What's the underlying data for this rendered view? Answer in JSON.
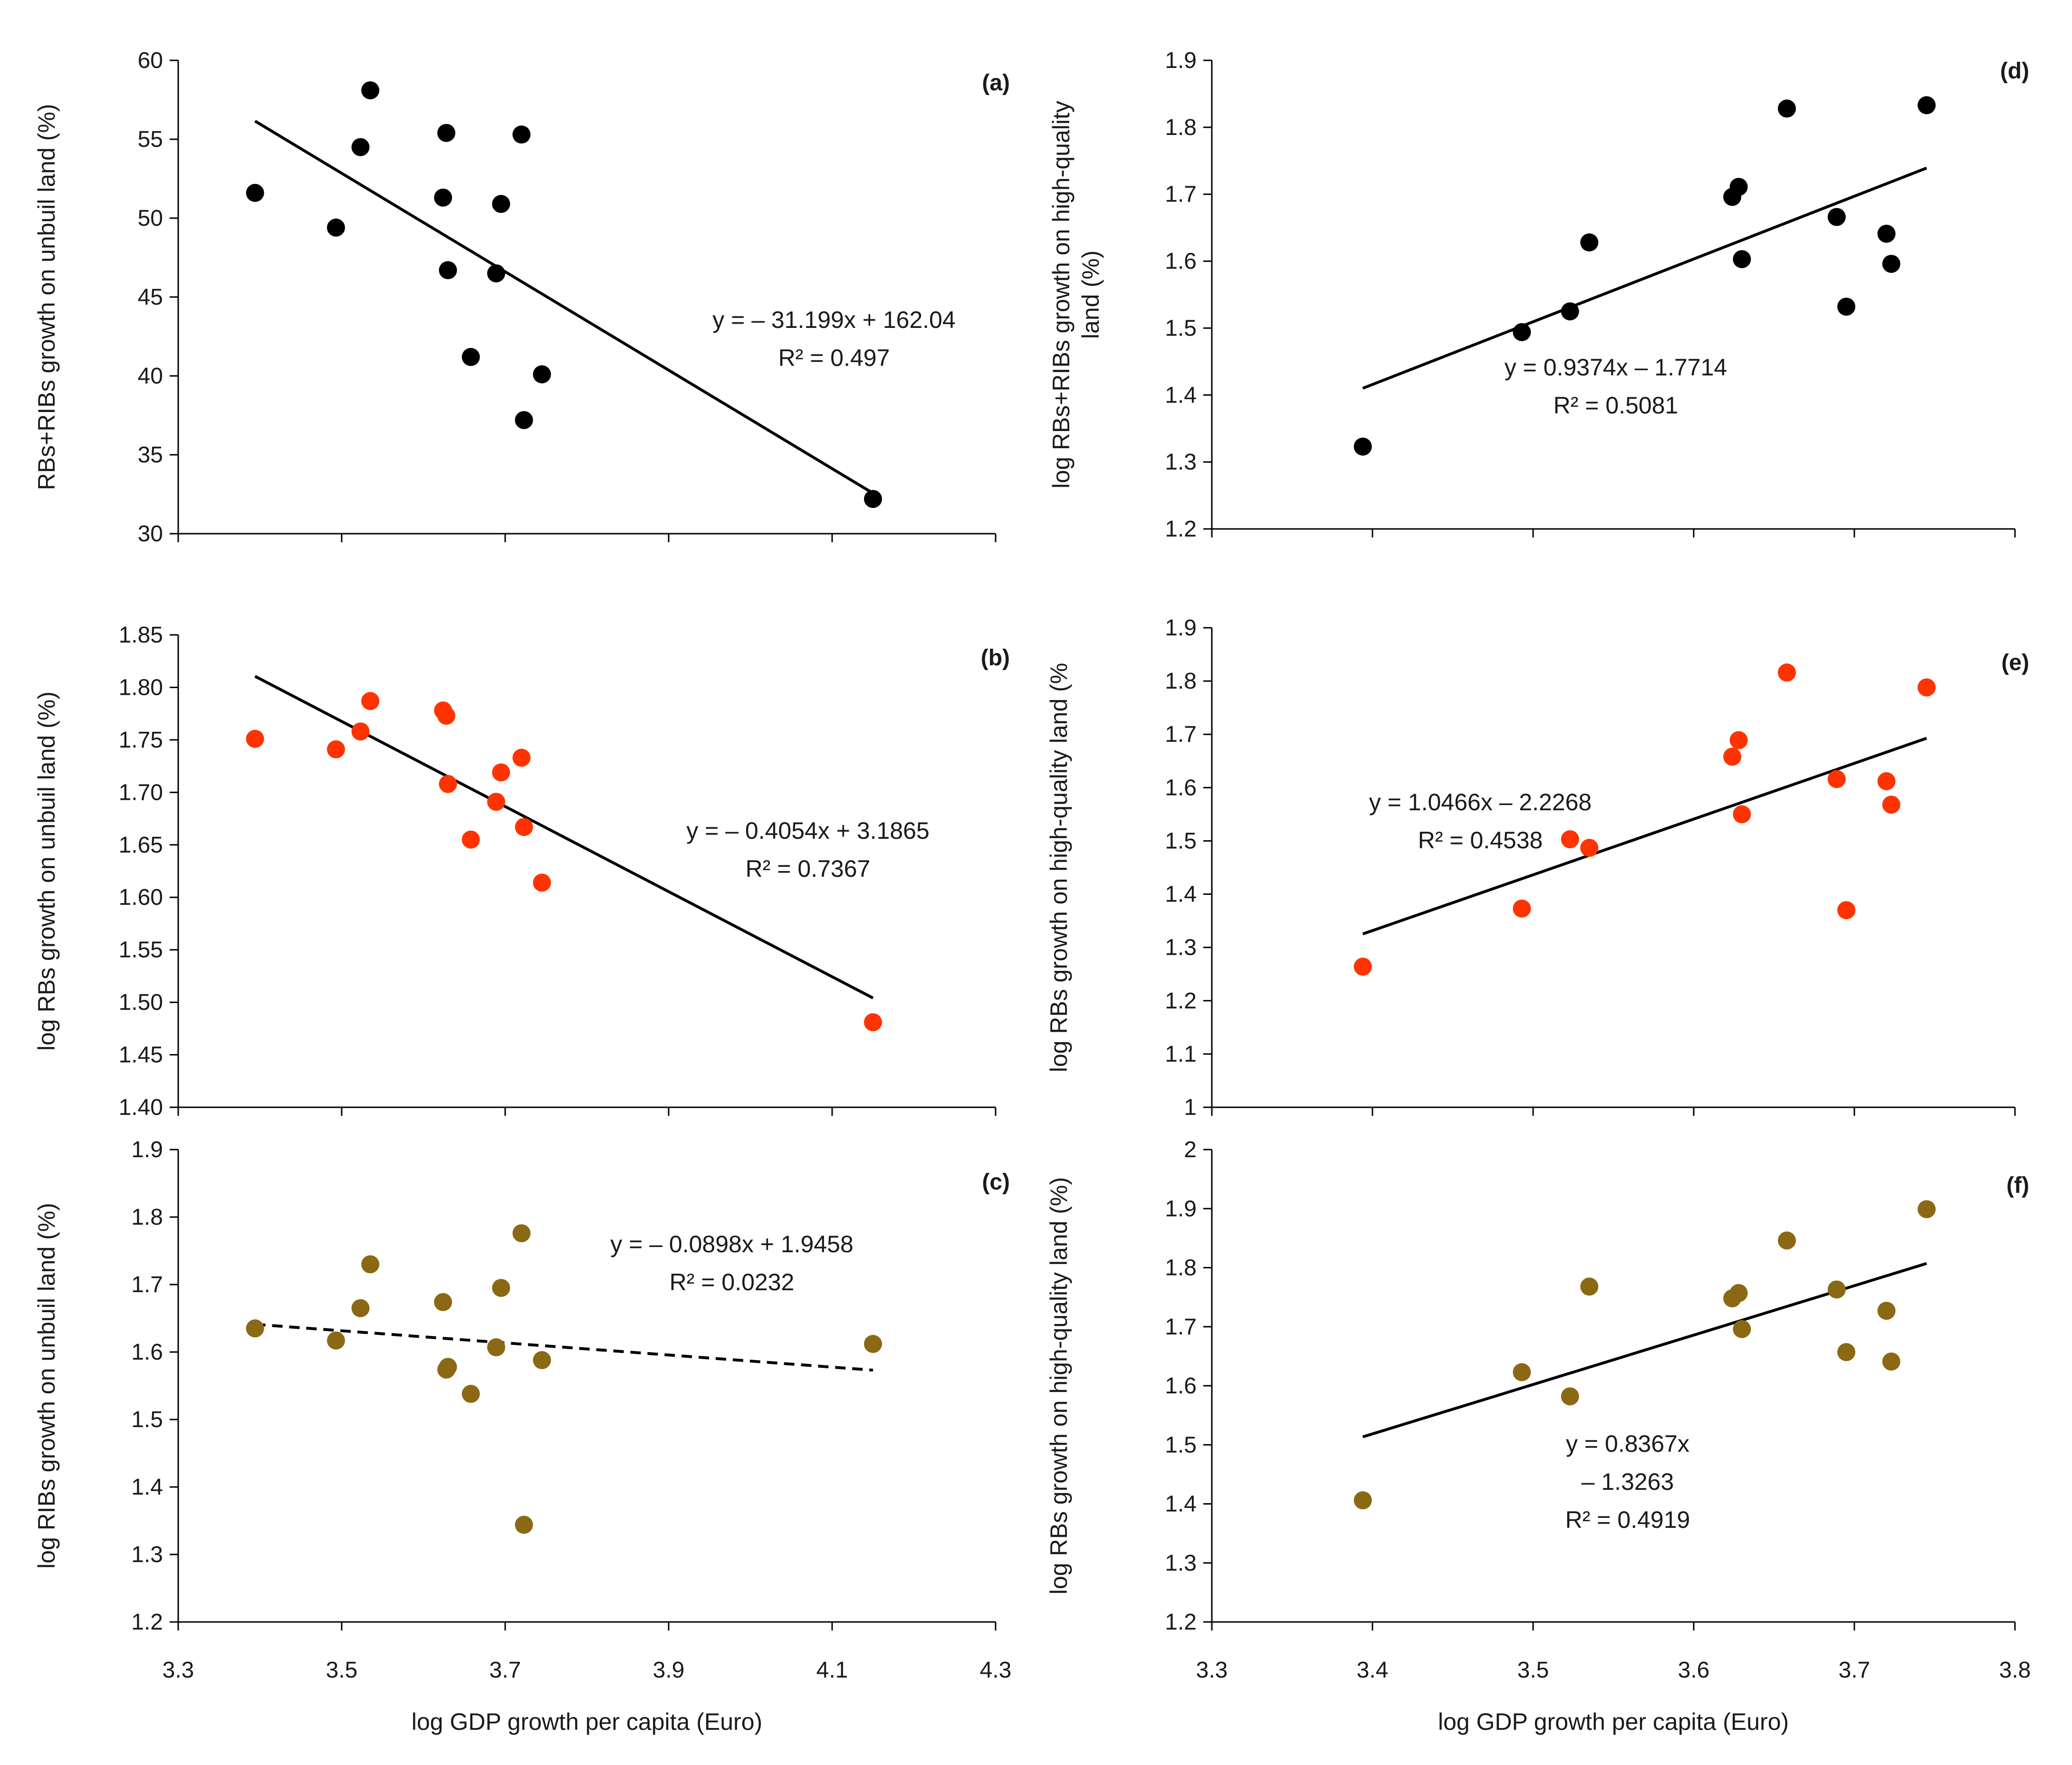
{
  "chart_data": [
    {
      "id": "a",
      "type": "scatter",
      "panel_label": "(a)",
      "ylabel": "RBs+RIBs  growth on unbuil land (%)",
      "xlabel": "",
      "xlim": [
        3.3,
        4.3
      ],
      "ylim": [
        30,
        60
      ],
      "xticks": [
        3.3,
        3.5,
        3.7,
        3.9,
        4.1,
        4.3
      ],
      "yticks": [
        30,
        35,
        40,
        45,
        50,
        55,
        60
      ],
      "show_x_tick_labels": false,
      "point_color": "#000000",
      "x": [
        3.394,
        3.493,
        3.523,
        3.535,
        3.624,
        3.628,
        3.63,
        3.658,
        3.689,
        3.695,
        3.72,
        3.723,
        3.745,
        4.15
      ],
      "y": [
        51.6,
        49.4,
        54.5,
        58.1,
        51.3,
        55.4,
        46.7,
        41.2,
        46.5,
        50.9,
        55.3,
        37.2,
        40.1,
        32.2
      ],
      "trendline": {
        "slope": -31.199,
        "intercept": 162.04,
        "x_range": [
          3.394,
          4.15
        ],
        "dashed": false
      },
      "equation_lines": [
        "y = – 31.199x + 162.04",
        "R² = 0.497"
      ]
    },
    {
      "id": "b",
      "type": "scatter",
      "panel_label": "(b)",
      "ylabel": "log RBs growth on unbuil land (%)",
      "xlabel": "",
      "xlim": [
        3.3,
        4.3
      ],
      "ylim": [
        1.4,
        1.85
      ],
      "xticks": [
        3.3,
        3.5,
        3.7,
        3.9,
        4.1,
        4.3
      ],
      "yticks": [
        1.4,
        1.45,
        1.5,
        1.55,
        1.6,
        1.65,
        1.7,
        1.75,
        1.8,
        1.85
      ],
      "ytick_labels": [
        "1.40",
        "1.45",
        "1.50",
        "1.55",
        "1.60",
        "1.65",
        "1.70",
        "1.75",
        "1.80",
        "1.85"
      ],
      "show_x_tick_labels": false,
      "point_color": "#ff3300",
      "x": [
        3.394,
        3.493,
        3.523,
        3.535,
        3.624,
        3.628,
        3.63,
        3.658,
        3.689,
        3.695,
        3.72,
        3.723,
        3.745,
        4.15
      ],
      "y": [
        1.751,
        1.741,
        1.758,
        1.787,
        1.778,
        1.773,
        1.708,
        1.655,
        1.691,
        1.719,
        1.733,
        1.667,
        1.614,
        1.481
      ],
      "trendline": {
        "slope": -0.4054,
        "intercept": 3.1865,
        "x_range": [
          3.394,
          4.15
        ],
        "dashed": false
      },
      "equation_lines": [
        "y = – 0.4054x + 3.1865",
        "R² = 0.7367"
      ]
    },
    {
      "id": "c",
      "type": "scatter",
      "panel_label": "(c)",
      "ylabel": "log RIBs growth on unbuil land (%)",
      "xlabel": "log GDP growth per capita (Euro)",
      "xlim": [
        3.3,
        4.3
      ],
      "ylim": [
        1.2,
        1.9
      ],
      "xticks": [
        3.3,
        3.5,
        3.7,
        3.9,
        4.1,
        4.3
      ],
      "yticks": [
        1.2,
        1.3,
        1.4,
        1.5,
        1.6,
        1.7,
        1.8,
        1.9
      ],
      "show_x_tick_labels": true,
      "point_color": "#8b6914",
      "x": [
        3.394,
        3.493,
        3.523,
        3.535,
        3.624,
        3.628,
        3.63,
        3.658,
        3.689,
        3.695,
        3.72,
        3.723,
        3.745,
        4.15
      ],
      "y": [
        1.635,
        1.617,
        1.665,
        1.73,
        1.674,
        1.574,
        1.578,
        1.538,
        1.607,
        1.695,
        1.776,
        1.344,
        1.588,
        1.612
      ],
      "trendline": {
        "slope": -0.0898,
        "intercept": 1.9458,
        "x_range": [
          3.394,
          4.15
        ],
        "dashed": true
      },
      "equation_lines": [
        "y = – 0.0898x + 1.9458",
        "R² = 0.0232"
      ]
    },
    {
      "id": "d",
      "type": "scatter",
      "panel_label": "(d)",
      "ylabel": "log RBs+RIBs  growth on high-quality land (%)",
      "xlabel": "",
      "xlim": [
        3.3,
        3.8
      ],
      "ylim": [
        1.2,
        1.9
      ],
      "xticks": [
        3.3,
        3.4,
        3.5,
        3.6,
        3.7,
        3.8
      ],
      "yticks": [
        1.2,
        1.3,
        1.4,
        1.5,
        1.6,
        1.7,
        1.8,
        1.9
      ],
      "show_x_tick_labels": false,
      "point_color": "#000000",
      "x": [
        3.394,
        3.493,
        3.523,
        3.535,
        3.624,
        3.628,
        3.63,
        3.658,
        3.689,
        3.695,
        3.72,
        3.723,
        3.745
      ],
      "y": [
        1.323,
        1.494,
        1.525,
        1.628,
        1.696,
        1.711,
        1.603,
        1.828,
        1.666,
        1.532,
        1.641,
        1.596,
        1.833
      ],
      "trendline": {
        "slope": 0.9374,
        "intercept": -1.7714,
        "x_range": [
          3.394,
          3.745
        ],
        "dashed": false
      },
      "equation_lines": [
        "y = 0.9374x – 1.7714",
        "R² = 0.5081"
      ]
    },
    {
      "id": "e",
      "type": "scatter",
      "panel_label": "(e)",
      "ylabel": "log RBs  growth on high-quality land (%",
      "xlabel": "",
      "xlim": [
        3.3,
        3.8
      ],
      "ylim": [
        1.0,
        1.9
      ],
      "xticks": [
        3.3,
        3.4,
        3.5,
        3.6,
        3.7,
        3.8
      ],
      "yticks": [
        1.0,
        1.1,
        1.2,
        1.3,
        1.4,
        1.5,
        1.6,
        1.7,
        1.8,
        1.9
      ],
      "ytick_labels": [
        "1",
        "1.1",
        "1.2",
        "1.3",
        "1.4",
        "1.5",
        "1.6",
        "1.7",
        "1.8",
        "1.9"
      ],
      "show_x_tick_labels": false,
      "point_color": "#ff3300",
      "x": [
        3.394,
        3.493,
        3.523,
        3.535,
        3.624,
        3.628,
        3.63,
        3.658,
        3.689,
        3.695,
        3.72,
        3.723,
        3.745
      ],
      "y": [
        1.264,
        1.373,
        1.503,
        1.487,
        1.658,
        1.689,
        1.55,
        1.816,
        1.616,
        1.37,
        1.612,
        1.568,
        1.788
      ],
      "trendline": {
        "slope": 1.0466,
        "intercept": -2.2268,
        "x_range": [
          3.394,
          3.745
        ],
        "dashed": false
      },
      "equation_lines": [
        "y = 1.0466x – 2.2268",
        "R² = 0.4538"
      ]
    },
    {
      "id": "f",
      "type": "scatter",
      "panel_label": "(f)",
      "ylabel": "log RBs  growth on high-quality land (%)",
      "xlabel": "log GDP growth per capita (Euro)",
      "xlim": [
        3.3,
        3.8
      ],
      "ylim": [
        1.2,
        2.0
      ],
      "xticks": [
        3.3,
        3.4,
        3.5,
        3.6,
        3.7,
        3.8
      ],
      "yticks": [
        1.2,
        1.3,
        1.4,
        1.5,
        1.6,
        1.7,
        1.8,
        1.9,
        2.0
      ],
      "ytick_labels": [
        "1.2",
        "1.3",
        "1.4",
        "1.5",
        "1.6",
        "1.7",
        "1.8",
        "1.9",
        "2"
      ],
      "show_x_tick_labels": true,
      "point_color": "#8b6914",
      "x": [
        3.394,
        3.493,
        3.523,
        3.535,
        3.624,
        3.628,
        3.63,
        3.658,
        3.689,
        3.695,
        3.72,
        3.723,
        3.745
      ],
      "y": [
        1.406,
        1.623,
        1.582,
        1.768,
        1.748,
        1.757,
        1.696,
        1.846,
        1.763,
        1.657,
        1.727,
        1.641,
        1.899
      ],
      "trendline": {
        "slope": 0.8367,
        "intercept": -1.3263,
        "x_range": [
          3.394,
          3.745
        ],
        "dashed": false
      },
      "equation_lines": [
        "y = 0.8367x",
        "– 1.3263",
        "R² = 0.4919"
      ]
    }
  ]
}
